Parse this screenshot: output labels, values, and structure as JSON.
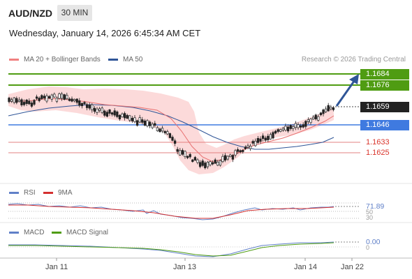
{
  "header": {
    "pair": "AUD/NZD",
    "timeframe": "30 MIN",
    "datetime": "Wednesday, January 14, 2026 6:45:34 AM CET"
  },
  "legend": {
    "ma20_label": "MA 20 + Bollinger Bands",
    "ma50_label": "MA 50",
    "credit": "Research © 2026 Trading Central"
  },
  "levels": {
    "res2": "1.1684",
    "res1": "1.1676",
    "last": "1.1659",
    "pivot": "1.1646",
    "sup1": "1.1633",
    "sup2": "1.1625"
  },
  "rsi": {
    "label": "RSI",
    "ma_label": "9MA",
    "value": "71.89",
    "tick_50": "50",
    "tick_30": "30"
  },
  "macd": {
    "label": "MACD",
    "signal_label": "MACD Signal",
    "value": "0.00",
    "tick_0": "0"
  },
  "xaxis": {
    "ticks": [
      "Jan 11",
      "Jan 13",
      "Jan 14",
      "Jan 22"
    ]
  },
  "colors": {
    "resistance": "#4f9c12",
    "pivot": "#3f7ae0",
    "support": "#d9342b",
    "ma20": "#f08080",
    "ma50": "#2f5597",
    "candle": "#222222",
    "band": "#fbd3d3"
  }
}
